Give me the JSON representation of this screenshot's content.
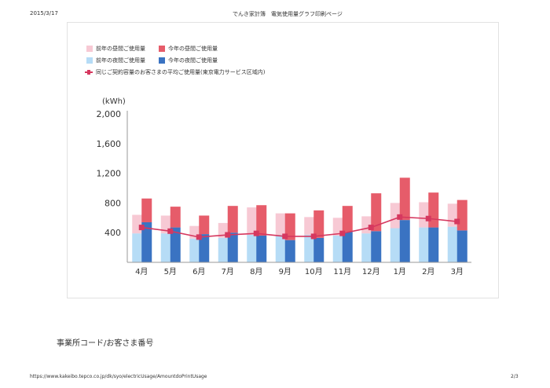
{
  "header": {
    "date": "2015/3/17",
    "title": "でんき家計簿　電気使用量グラフ印刷ページ"
  },
  "legend": {
    "prev_day": "前年の昼間ご使用量",
    "curr_day": "今年の昼間ご使用量",
    "prev_night": "前年の夜間ご使用量",
    "curr_night": "今年の夜間ご使用量",
    "average": "同じご契約容量のお客さまの平均ご使用量(東京電力サービス区域内)"
  },
  "colors": {
    "prev_day": "#f7c9d4",
    "curr_day": "#e65c6a",
    "prev_night": "#b6dcf6",
    "curr_night": "#3a73c2",
    "average": "#d6385f"
  },
  "chart_data": {
    "type": "bar",
    "unit_label": "(kWh)",
    "categories": [
      "4月",
      "5月",
      "6月",
      "7月",
      "8月",
      "9月",
      "10月",
      "11月",
      "12月",
      "1月",
      "2月",
      "3月"
    ],
    "yticks": [
      "2,000",
      "1,600",
      "1,200",
      "800",
      "400"
    ],
    "ylim": [
      0,
      2000
    ],
    "grid": false,
    "series": [
      {
        "name": "前年の夜間ご使用量",
        "values": [
          390,
          390,
          320,
          330,
          370,
          370,
          370,
          360,
          390,
          460,
          470,
          480
        ]
      },
      {
        "name": "前年の昼間ご使用量",
        "values": [
          250,
          240,
          170,
          200,
          370,
          290,
          240,
          240,
          230,
          340,
          340,
          310
        ]
      },
      {
        "name": "今年の夜間ご使用量",
        "values": [
          540,
          470,
          380,
          400,
          360,
          300,
          330,
          410,
          420,
          570,
          470,
          430
        ]
      },
      {
        "name": "今年の昼間ご使用量",
        "values": [
          320,
          280,
          250,
          360,
          410,
          360,
          370,
          350,
          510,
          570,
          470,
          410
        ]
      },
      {
        "name": "同じご契約容量のお客さまの平均ご使用量(東京電力サービス区域内)",
        "values": [
          470,
          420,
          340,
          370,
          390,
          350,
          350,
          390,
          470,
          610,
          590,
          550
        ]
      }
    ]
  },
  "footer": {
    "label": "事業所コード/お客さま番号",
    "url": "https://www.kakeibo.tepco.co.jp/dk/syo/electricUsage/AmountdoPrintUsage",
    "page": "2/3"
  }
}
